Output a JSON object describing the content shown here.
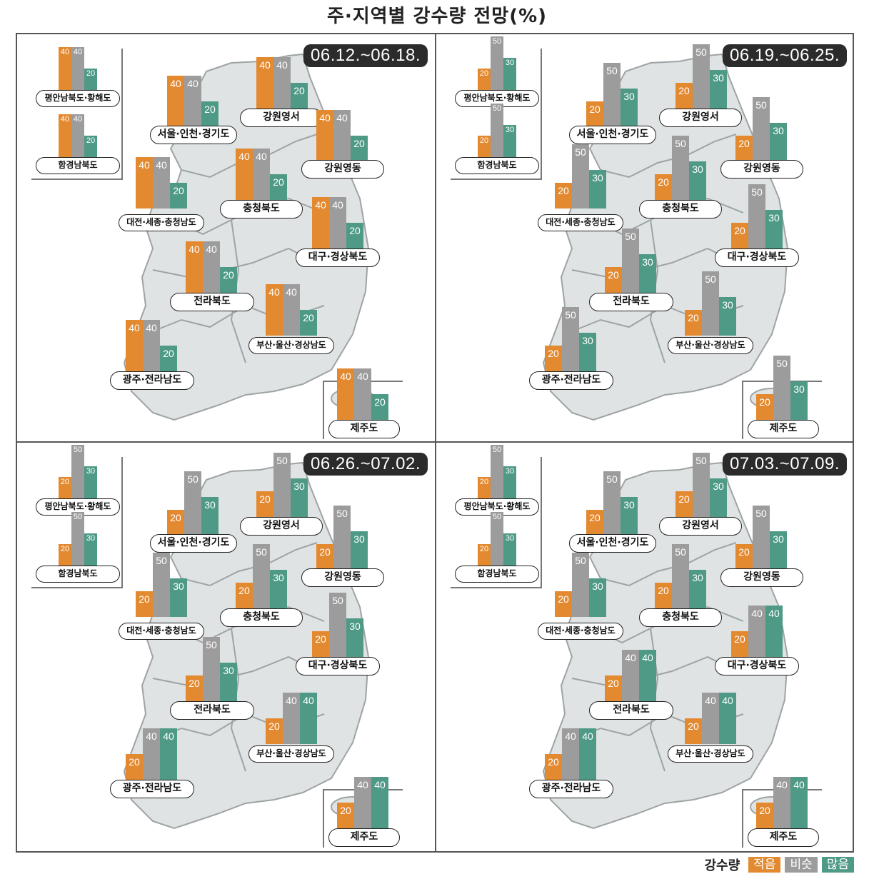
{
  "title": "주·지역별 강수량 전망(%)",
  "legend": {
    "title": "강수량",
    "items": [
      {
        "label": "적음",
        "color": "#e3892f"
      },
      {
        "label": "비슷",
        "color": "#9c9c9c"
      },
      {
        "label": "많음",
        "color": "#4e9a86"
      }
    ]
  },
  "regions": [
    "평안남북도·황해도",
    "함경남북도",
    "서울·인천·경기도",
    "강원영서",
    "강원영동",
    "충청북도",
    "대전·세종·충청남도",
    "대구·경상북도",
    "전라북도",
    "부산·울산·경상남도",
    "광주·전라남도",
    "제주도"
  ],
  "panels": [
    {
      "date": "06.12.~06.18.",
      "values": [
        [
          40,
          40,
          20
        ],
        [
          40,
          40,
          20
        ],
        [
          40,
          40,
          20
        ],
        [
          40,
          40,
          20
        ],
        [
          40,
          40,
          20
        ],
        [
          40,
          40,
          20
        ],
        [
          40,
          40,
          20
        ],
        [
          40,
          40,
          20
        ],
        [
          40,
          40,
          20
        ],
        [
          40,
          40,
          20
        ],
        [
          40,
          40,
          20
        ],
        [
          40,
          40,
          20
        ]
      ]
    },
    {
      "date": "06.19.~06.25.",
      "values": [
        [
          20,
          50,
          30
        ],
        [
          20,
          50,
          30
        ],
        [
          20,
          50,
          30
        ],
        [
          20,
          50,
          30
        ],
        [
          20,
          50,
          30
        ],
        [
          20,
          50,
          30
        ],
        [
          20,
          50,
          30
        ],
        [
          20,
          50,
          30
        ],
        [
          20,
          50,
          30
        ],
        [
          20,
          50,
          30
        ],
        [
          20,
          50,
          30
        ],
        [
          20,
          50,
          30
        ]
      ]
    },
    {
      "date": "06.26.~07.02.",
      "values": [
        [
          20,
          50,
          30
        ],
        [
          20,
          50,
          30
        ],
        [
          20,
          50,
          30
        ],
        [
          20,
          50,
          30
        ],
        [
          20,
          50,
          30
        ],
        [
          20,
          50,
          30
        ],
        [
          20,
          50,
          30
        ],
        [
          20,
          50,
          30
        ],
        [
          20,
          50,
          30
        ],
        [
          20,
          40,
          40
        ],
        [
          20,
          40,
          40
        ],
        [
          20,
          40,
          40
        ]
      ]
    },
    {
      "date": "07.03.~07.09.",
      "values": [
        [
          20,
          50,
          30
        ],
        [
          20,
          50,
          30
        ],
        [
          20,
          50,
          30
        ],
        [
          20,
          50,
          30
        ],
        [
          20,
          50,
          30
        ],
        [
          20,
          50,
          30
        ],
        [
          20,
          50,
          30
        ],
        [
          20,
          40,
          40
        ],
        [
          20,
          40,
          40
        ],
        [
          20,
          40,
          40
        ],
        [
          20,
          40,
          40
        ],
        [
          20,
          40,
          40
        ]
      ]
    }
  ],
  "chart_data": {
    "type": "bar",
    "title": "주·지역별 강수량 전망(%)",
    "categories": [
      "평안남북도·황해도",
      "함경남북도",
      "서울·인천·경기도",
      "강원영서",
      "강원영동",
      "충청북도",
      "대전·세종·충청남도",
      "대구·경상북도",
      "전라북도",
      "부산·울산·경상남도",
      "광주·전라남도",
      "제주도"
    ],
    "legend": [
      "적음",
      "비슷",
      "많음"
    ],
    "legend_position": "bottom-right",
    "ylabel": "%",
    "periods": [
      {
        "period": "06.12.~06.18.",
        "series": [
          {
            "name": "적음",
            "values": [
              40,
              40,
              40,
              40,
              40,
              40,
              40,
              40,
              40,
              40,
              40,
              40
            ]
          },
          {
            "name": "비슷",
            "values": [
              40,
              40,
              40,
              40,
              40,
              40,
              40,
              40,
              40,
              40,
              40,
              40
            ]
          },
          {
            "name": "많음",
            "values": [
              20,
              20,
              20,
              20,
              20,
              20,
              20,
              20,
              20,
              20,
              20,
              20
            ]
          }
        ]
      },
      {
        "period": "06.19.~06.25.",
        "series": [
          {
            "name": "적음",
            "values": [
              20,
              20,
              20,
              20,
              20,
              20,
              20,
              20,
              20,
              20,
              20,
              20
            ]
          },
          {
            "name": "비슷",
            "values": [
              50,
              50,
              50,
              50,
              50,
              50,
              50,
              50,
              50,
              50,
              50,
              50
            ]
          },
          {
            "name": "많음",
            "values": [
              30,
              30,
              30,
              30,
              30,
              30,
              30,
              30,
              30,
              30,
              30,
              30
            ]
          }
        ]
      },
      {
        "period": "06.26.~07.02.",
        "series": [
          {
            "name": "적음",
            "values": [
              20,
              20,
              20,
              20,
              20,
              20,
              20,
              20,
              20,
              20,
              20,
              20
            ]
          },
          {
            "name": "비슷",
            "values": [
              50,
              50,
              50,
              50,
              50,
              50,
              50,
              50,
              50,
              40,
              40,
              40
            ]
          },
          {
            "name": "많음",
            "values": [
              30,
              30,
              30,
              30,
              30,
              30,
              30,
              30,
              30,
              40,
              40,
              40
            ]
          }
        ]
      },
      {
        "period": "07.03.~07.09.",
        "series": [
          {
            "name": "적음",
            "values": [
              20,
              20,
              20,
              20,
              20,
              20,
              20,
              20,
              20,
              20,
              20,
              20
            ]
          },
          {
            "name": "비슷",
            "values": [
              50,
              50,
              50,
              50,
              50,
              50,
              50,
              40,
              40,
              40,
              40,
              40
            ]
          },
          {
            "name": "많음",
            "values": [
              30,
              30,
              30,
              30,
              30,
              30,
              30,
              40,
              40,
              40,
              40,
              40
            ]
          }
        ]
      }
    ]
  }
}
